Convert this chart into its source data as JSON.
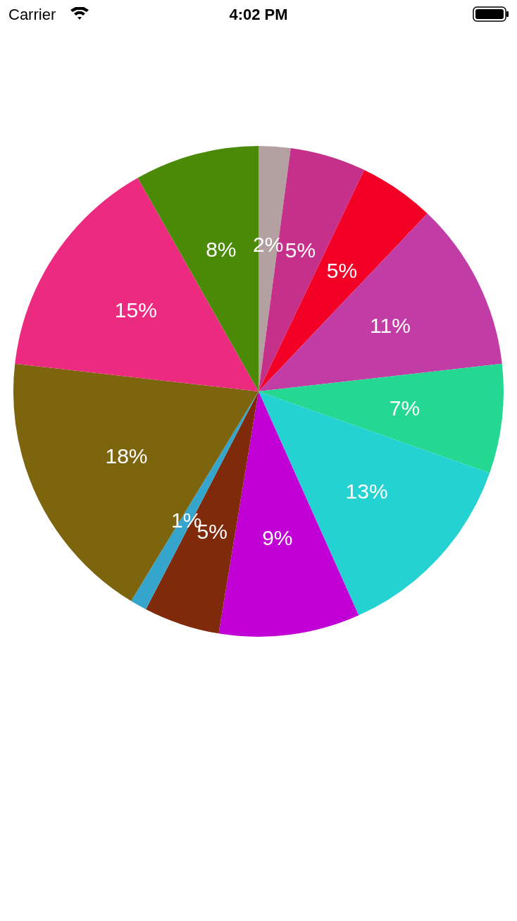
{
  "chart_data": {
    "type": "pie",
    "categories": [
      null,
      null,
      null,
      null,
      null,
      null,
      null,
      null,
      null,
      null,
      null,
      null
    ],
    "values": [
      2.1,
      5,
      5,
      11.1,
      7.2,
      12.9,
      9.3,
      5,
      1.1,
      18.1,
      15,
      8.2
    ],
    "colors": [
      "#b3a0a0",
      "#c4308a",
      "#f20026",
      "#c23ca6",
      "#24d892",
      "#24d2d2",
      "#c000d4",
      "#802a0c",
      "#35a5cc",
      "#7d650e",
      "#ec2a80",
      "#4a8a06"
    ],
    "value_labels": [
      "2%",
      "5%",
      "5%",
      "11%",
      "7%",
      "13%",
      "9%",
      "5%",
      "1%",
      "18%",
      "15%",
      "8%"
    ],
    "annotations": [
      "Carrier",
      "4:02 PM"
    ]
  }
}
